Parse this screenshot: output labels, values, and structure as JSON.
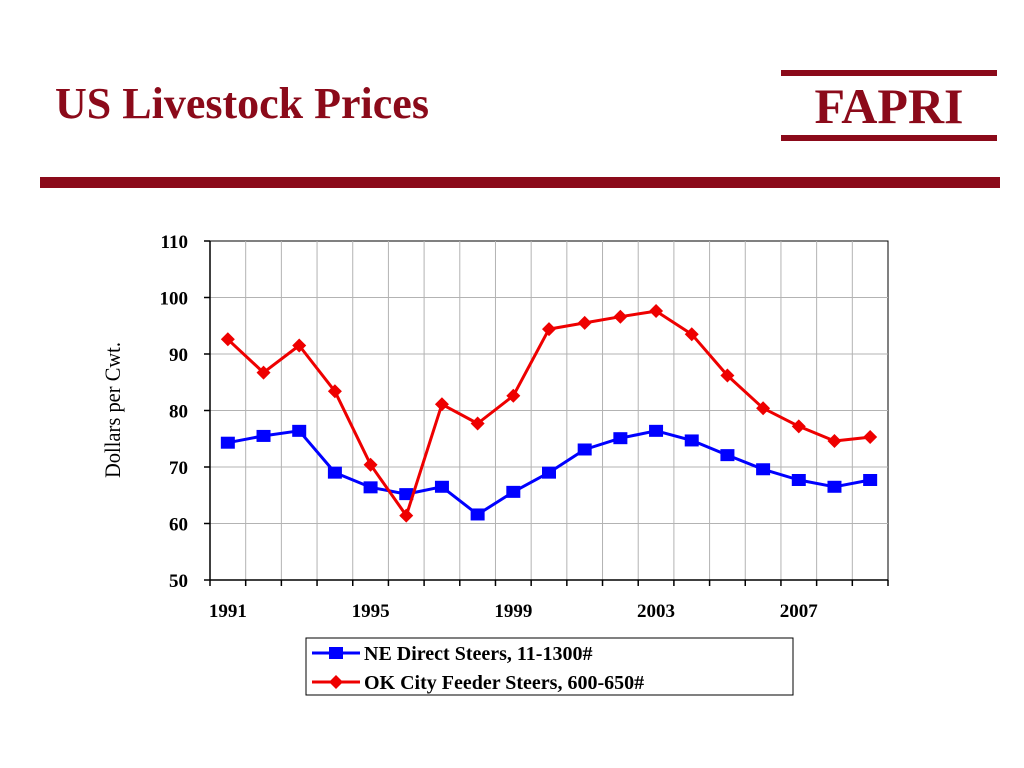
{
  "slide": {
    "title": "US Livestock Prices",
    "logo_text": "FAPRI",
    "brand_color": "#8b0a1a"
  },
  "chart_data": {
    "type": "line",
    "title": "",
    "xlabel": "",
    "ylabel": "Dollars per Cwt.",
    "x": [
      1991,
      1992,
      1993,
      1994,
      1995,
      1996,
      1997,
      1998,
      1999,
      2000,
      2001,
      2002,
      2003,
      2004,
      2005,
      2006,
      2007,
      2008,
      2009
    ],
    "x_tick_labels": [
      "1991",
      "1995",
      "1999",
      "2003",
      "2007"
    ],
    "ylim": [
      50,
      110
    ],
    "y_ticks": [
      50,
      60,
      70,
      80,
      90,
      100,
      110
    ],
    "grid": true,
    "legend": "bottom",
    "series": [
      {
        "name": "NE Direct Steers, 11-1300#",
        "color": "#0000ff",
        "marker": "square",
        "values": [
          74.3,
          75.5,
          76.4,
          69.0,
          66.4,
          65.2,
          66.5,
          61.6,
          65.6,
          69.0,
          73.1,
          75.1,
          76.4,
          74.7,
          72.1,
          69.6,
          67.7,
          66.5,
          67.7
        ]
      },
      {
        "name": "OK City Feeder Steers, 600-650#",
        "color": "#ee0000",
        "marker": "diamond",
        "values": [
          92.6,
          86.7,
          91.5,
          83.4,
          70.4,
          61.4,
          81.1,
          77.7,
          82.6,
          94.4,
          95.5,
          96.6,
          97.6,
          93.5,
          86.2,
          80.4,
          77.2,
          74.6,
          75.3
        ]
      }
    ]
  }
}
